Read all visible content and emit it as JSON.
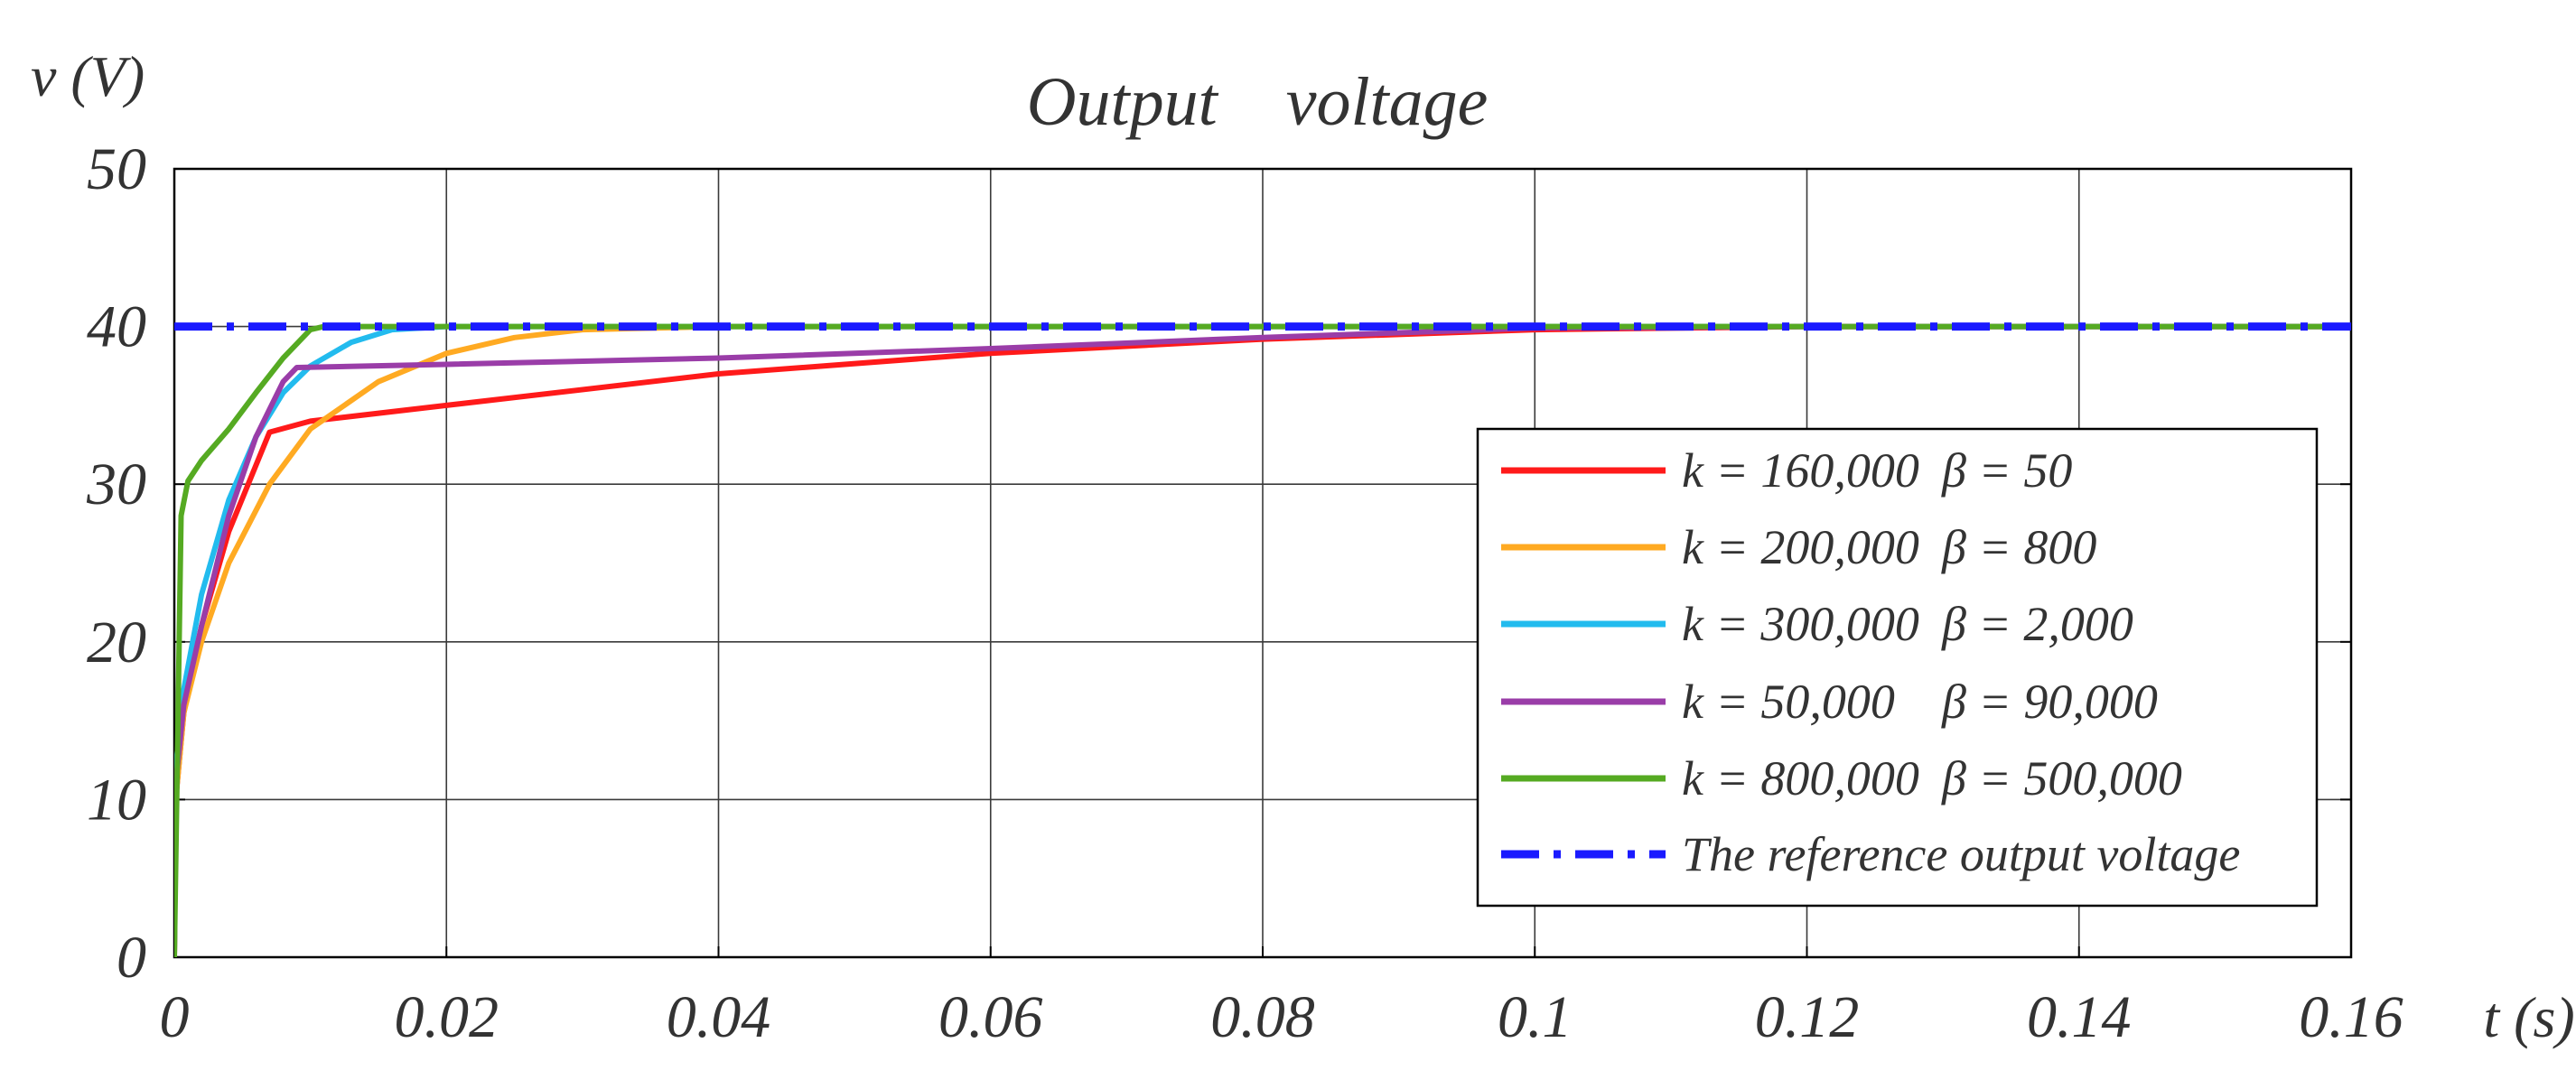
{
  "chart_data": {
    "type": "line",
    "title": "Output    voltage",
    "xlabel": "t (s)",
    "ylabel": "v (V)",
    "xlim": [
      0,
      0.16
    ],
    "ylim": [
      0,
      50
    ],
    "grid": true,
    "x_ticks": [
      0,
      0.02,
      0.04,
      0.06,
      0.08,
      0.1,
      0.12,
      0.14,
      0.16
    ],
    "x_tick_labels": [
      "0",
      "0.02",
      "0.04",
      "0.06",
      "0.08",
      "0.1",
      "0.12",
      "0.14",
      "0.16"
    ],
    "y_ticks": [
      0,
      10,
      20,
      30,
      40,
      50
    ],
    "y_tick_labels": [
      "0",
      "10",
      "20",
      "30",
      "40",
      "50"
    ],
    "legend_position": "bottom-right",
    "series": [
      {
        "name": "k = 160,000 β = 50",
        "k_label": "k = 160,000",
        "beta_label": "β = 50",
        "color": "#ff1a1a",
        "dash": "solid",
        "x": [
          0,
          0.0001,
          0.0007,
          0.002,
          0.004,
          0.007,
          0.01,
          0.02,
          0.04,
          0.06,
          0.08,
          0.1,
          0.12,
          0.16
        ],
        "y": [
          0,
          10,
          15.5,
          21,
          27,
          33.3,
          34,
          35,
          37,
          38.3,
          39.2,
          39.8,
          40,
          40
        ]
      },
      {
        "name": "k = 200,000 β = 800",
        "k_label": "k = 200,000",
        "beta_label": "β = 800",
        "color": "#ffaa22",
        "dash": "solid",
        "x": [
          0,
          0.0001,
          0.0007,
          0.002,
          0.004,
          0.007,
          0.01,
          0.015,
          0.02,
          0.025,
          0.03,
          0.04,
          0.16
        ],
        "y": [
          0,
          10,
          15.5,
          20,
          25,
          30,
          33.5,
          36.5,
          38.3,
          39.3,
          39.8,
          40,
          40
        ]
      },
      {
        "name": "k = 300,000 β = 2,000",
        "k_label": "k = 300,000",
        "beta_label": "β = 2,000",
        "color": "#22bbee",
        "dash": "solid",
        "x": [
          0,
          0.0001,
          0.0007,
          0.002,
          0.004,
          0.006,
          0.008,
          0.01,
          0.013,
          0.016,
          0.02,
          0.16
        ],
        "y": [
          0,
          12,
          17,
          23,
          29,
          33,
          35.8,
          37.5,
          39,
          39.8,
          40,
          40
        ]
      },
      {
        "name": "k = 50,000 β = 90,000",
        "k_label": "k = 50,000",
        "beta_label": "β = 90,000",
        "color": "#9a3da8",
        "dash": "solid",
        "x": [
          0,
          0.0001,
          0.0007,
          0.002,
          0.004,
          0.006,
          0.008,
          0.009,
          0.02,
          0.04,
          0.06,
          0.08,
          0.1,
          0.12,
          0.16
        ],
        "y": [
          0,
          11,
          16,
          21,
          28,
          33,
          36.5,
          37.4,
          37.6,
          38,
          38.6,
          39.3,
          39.9,
          40,
          40
        ]
      },
      {
        "name": "k = 800,000 β = 500,000",
        "k_label": "k = 800,000",
        "beta_label": "β = 500,000",
        "color": "#55aa22",
        "dash": "solid",
        "x": [
          0,
          0.0005,
          0.001,
          0.002,
          0.004,
          0.006,
          0.008,
          0.01,
          0.011,
          0.16
        ],
        "y": [
          0,
          28,
          30.2,
          31.5,
          33.5,
          35.8,
          38,
          39.8,
          40,
          40
        ]
      },
      {
        "name": "The reference output voltage",
        "color": "#1a1aff",
        "dash": "dashdot",
        "x": [
          0,
          0.16
        ],
        "y": [
          40,
          40
        ]
      }
    ]
  }
}
